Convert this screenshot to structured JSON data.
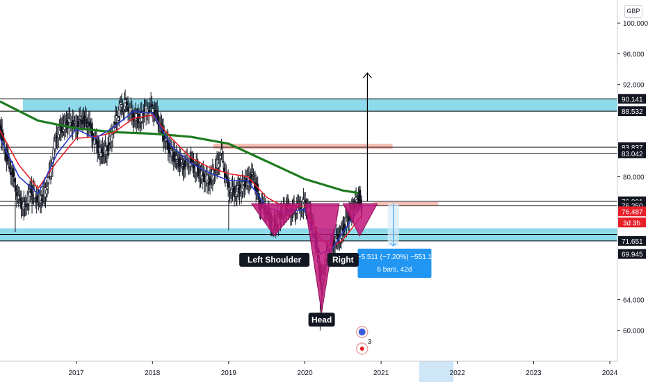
{
  "currency_button": "GBP",
  "colors": {
    "candle": "#131722",
    "ema_fast": "#2a3bcc",
    "ema_slow": "#e8202a",
    "ma_long": "#1e7b1e",
    "zone_cyan": "#7ad3e6",
    "zone_salmon": "#f4a99c",
    "pattern_fill": "#c2187a",
    "price_badge": "#e8202a",
    "line_badge": "#131722",
    "measure_box": "#2196f3",
    "time_highlight": "#cfe6f7"
  },
  "chart_data": {
    "type": "candlestick",
    "symbol_currency": "GBP",
    "xlim": [
      2016.0,
      2024.1
    ],
    "ylim": [
      56.0,
      103.0
    ],
    "x_ticks": [
      "2017",
      "2018",
      "2019",
      "2020",
      "2021",
      "2022",
      "2023",
      "2024"
    ],
    "y_ticks": [
      "100.000",
      "96.000",
      "92.000",
      "80.000",
      "64.000",
      "60.000"
    ],
    "price_levels": [
      {
        "label": "90.141",
        "value": 90.14
      },
      {
        "label": "88.532",
        "value": 88.53
      },
      {
        "label": "83.837",
        "value": 83.84
      },
      {
        "label": "83.042",
        "value": 83.04
      },
      {
        "label": "76.801",
        "value": 76.8
      },
      {
        "label": "76.250",
        "value": 76.25
      },
      {
        "label": "71.651",
        "value": 71.65
      },
      {
        "label": "69.945",
        "value": 69.95
      }
    ],
    "current_price": {
      "label": "76.487",
      "value": 76.49
    },
    "countdown": "3d 3h",
    "horizontal_lines": [
      90.14,
      88.53,
      83.84,
      83.04,
      76.8,
      76.25,
      72.5,
      71.65
    ],
    "zones": [
      {
        "color": "cyan",
        "x_from": 2016.3,
        "x_to": 2024.1,
        "y_from": 88.53,
        "y_to": 90.14
      },
      {
        "color": "cyan",
        "x_from": 2016.0,
        "x_to": 2024.1,
        "y_from": 71.65,
        "y_to": 73.3
      },
      {
        "color": "salmon",
        "x_from": 2018.8,
        "x_to": 2021.15,
        "y_from": 83.6,
        "y_to": 84.3
      },
      {
        "color": "salmon",
        "x_from": 2020.9,
        "x_to": 2021.75,
        "y_from": 76.2,
        "y_to": 76.7
      }
    ],
    "candles_close": [
      [
        2016.0,
        86.5
      ],
      [
        2016.08,
        83.0
      ],
      [
        2016.16,
        80.5
      ],
      [
        2016.25,
        77.0
      ],
      [
        2016.33,
        76.0
      ],
      [
        2016.41,
        78.5
      ],
      [
        2016.5,
        77.0
      ],
      [
        2016.58,
        77.5
      ],
      [
        2016.66,
        80.5
      ],
      [
        2016.75,
        85.5
      ],
      [
        2016.83,
        86.5
      ],
      [
        2016.91,
        87.0
      ],
      [
        2017.0,
        86.5
      ],
      [
        2017.08,
        87.5
      ],
      [
        2017.16,
        87.0
      ],
      [
        2017.25,
        84.5
      ],
      [
        2017.33,
        83.0
      ],
      [
        2017.41,
        83.5
      ],
      [
        2017.5,
        86.5
      ],
      [
        2017.58,
        89.0
      ],
      [
        2017.66,
        89.5
      ],
      [
        2017.75,
        88.0
      ],
      [
        2017.83,
        87.5
      ],
      [
        2017.91,
        88.5
      ],
      [
        2018.0,
        89.0
      ],
      [
        2018.08,
        87.5
      ],
      [
        2018.16,
        85.0
      ],
      [
        2018.25,
        83.0
      ],
      [
        2018.33,
        82.0
      ],
      [
        2018.41,
        81.5
      ],
      [
        2018.5,
        82.0
      ],
      [
        2018.58,
        81.0
      ],
      [
        2018.66,
        80.0
      ],
      [
        2018.75,
        79.5
      ],
      [
        2018.83,
        81.0
      ],
      [
        2018.91,
        83.0
      ],
      [
        2019.0,
        78.5
      ],
      [
        2019.08,
        78.0
      ],
      [
        2019.16,
        78.5
      ],
      [
        2019.25,
        79.5
      ],
      [
        2019.33,
        80.0
      ],
      [
        2019.41,
        76.5
      ],
      [
        2019.5,
        75.5
      ],
      [
        2019.58,
        73.5
      ],
      [
        2019.66,
        74.5
      ],
      [
        2019.75,
        76.0
      ],
      [
        2019.83,
        75.5
      ],
      [
        2019.91,
        76.0
      ],
      [
        2020.0,
        76.5
      ],
      [
        2020.08,
        75.0
      ],
      [
        2020.16,
        71.0
      ],
      [
        2020.22,
        66.0
      ],
      [
        2020.3,
        70.0
      ],
      [
        2020.38,
        71.5
      ],
      [
        2020.46,
        72.0
      ],
      [
        2020.54,
        74.0
      ],
      [
        2020.62,
        75.5
      ],
      [
        2020.7,
        77.2
      ],
      [
        2020.75,
        76.49
      ]
    ],
    "ema_fast": [
      [
        2016.0,
        85.0
      ],
      [
        2016.25,
        80.0
      ],
      [
        2016.5,
        77.8
      ],
      [
        2016.75,
        83.0
      ],
      [
        2017.0,
        86.2
      ],
      [
        2017.25,
        85.0
      ],
      [
        2017.5,
        86.5
      ],
      [
        2017.75,
        88.5
      ],
      [
        2018.0,
        88.3
      ],
      [
        2018.25,
        84.0
      ],
      [
        2018.5,
        81.8
      ],
      [
        2018.75,
        80.5
      ],
      [
        2019.0,
        79.5
      ],
      [
        2019.25,
        79.5
      ],
      [
        2019.5,
        76.0
      ],
      [
        2019.75,
        75.3
      ],
      [
        2020.0,
        75.8
      ],
      [
        2020.2,
        70.0
      ],
      [
        2020.35,
        70.5
      ],
      [
        2020.5,
        72.8
      ],
      [
        2020.75,
        76.3
      ]
    ],
    "ema_slow": [
      [
        2016.0,
        86.0
      ],
      [
        2016.25,
        81.5
      ],
      [
        2016.5,
        78.5
      ],
      [
        2016.75,
        82.0
      ],
      [
        2017.0,
        85.0
      ],
      [
        2017.25,
        85.2
      ],
      [
        2017.5,
        85.8
      ],
      [
        2017.75,
        87.6
      ],
      [
        2018.0,
        88.0
      ],
      [
        2018.25,
        85.0
      ],
      [
        2018.5,
        82.5
      ],
      [
        2018.75,
        81.2
      ],
      [
        2019.0,
        80.4
      ],
      [
        2019.25,
        80.0
      ],
      [
        2019.5,
        77.3
      ],
      [
        2019.75,
        76.0
      ],
      [
        2020.0,
        76.2
      ],
      [
        2020.2,
        72.0
      ],
      [
        2020.35,
        70.8
      ],
      [
        2020.5,
        71.8
      ],
      [
        2020.75,
        75.0
      ]
    ],
    "ma_long": [
      [
        2016.0,
        89.8
      ],
      [
        2016.5,
        87.3
      ],
      [
        2017.0,
        86.3
      ],
      [
        2017.5,
        85.8
      ],
      [
        2018.0,
        85.6
      ],
      [
        2018.5,
        85.2
      ],
      [
        2019.0,
        84.3
      ],
      [
        2019.5,
        82.0
      ],
      [
        2020.0,
        79.7
      ],
      [
        2020.5,
        78.2
      ],
      [
        2020.7,
        77.9
      ]
    ],
    "annotations": [
      {
        "text": "Left Shoulder",
        "x": 2019.6,
        "y": 70.1
      },
      {
        "text": "Right",
        "x": 2020.5,
        "y": 70.1
      },
      {
        "text": "Head",
        "x": 2020.22,
        "y": 62.3
      }
    ],
    "pattern_triangles": [
      {
        "top_left": [
          2019.3,
          76.5
        ],
        "top_right": [
          2019.95,
          76.5
        ],
        "bottom": [
          2019.6,
          72.3
        ]
      },
      {
        "top_left": [
          2020.0,
          76.5
        ],
        "top_right": [
          2020.45,
          76.5
        ],
        "bottom": [
          2020.22,
          62.3
        ]
      },
      {
        "top_left": [
          2020.5,
          76.5
        ],
        "top_right": [
          2020.95,
          76.5
        ],
        "bottom": [
          2020.72,
          72.3
        ]
      }
    ],
    "target_arrow": {
      "x": 2020.82,
      "y_from": 76.8,
      "y_to": 93.5
    },
    "measurement": {
      "line1": "−5.511 (−7.20%) −551.1",
      "line2": "6 bars, 42d",
      "x_from": 2020.72,
      "x_to": 2021.3,
      "y_from": 76.5,
      "y_to": 71.0
    },
    "time_highlight": {
      "x_from": 2021.5,
      "x_to": 2021.95
    },
    "event_marker_count": "3"
  }
}
